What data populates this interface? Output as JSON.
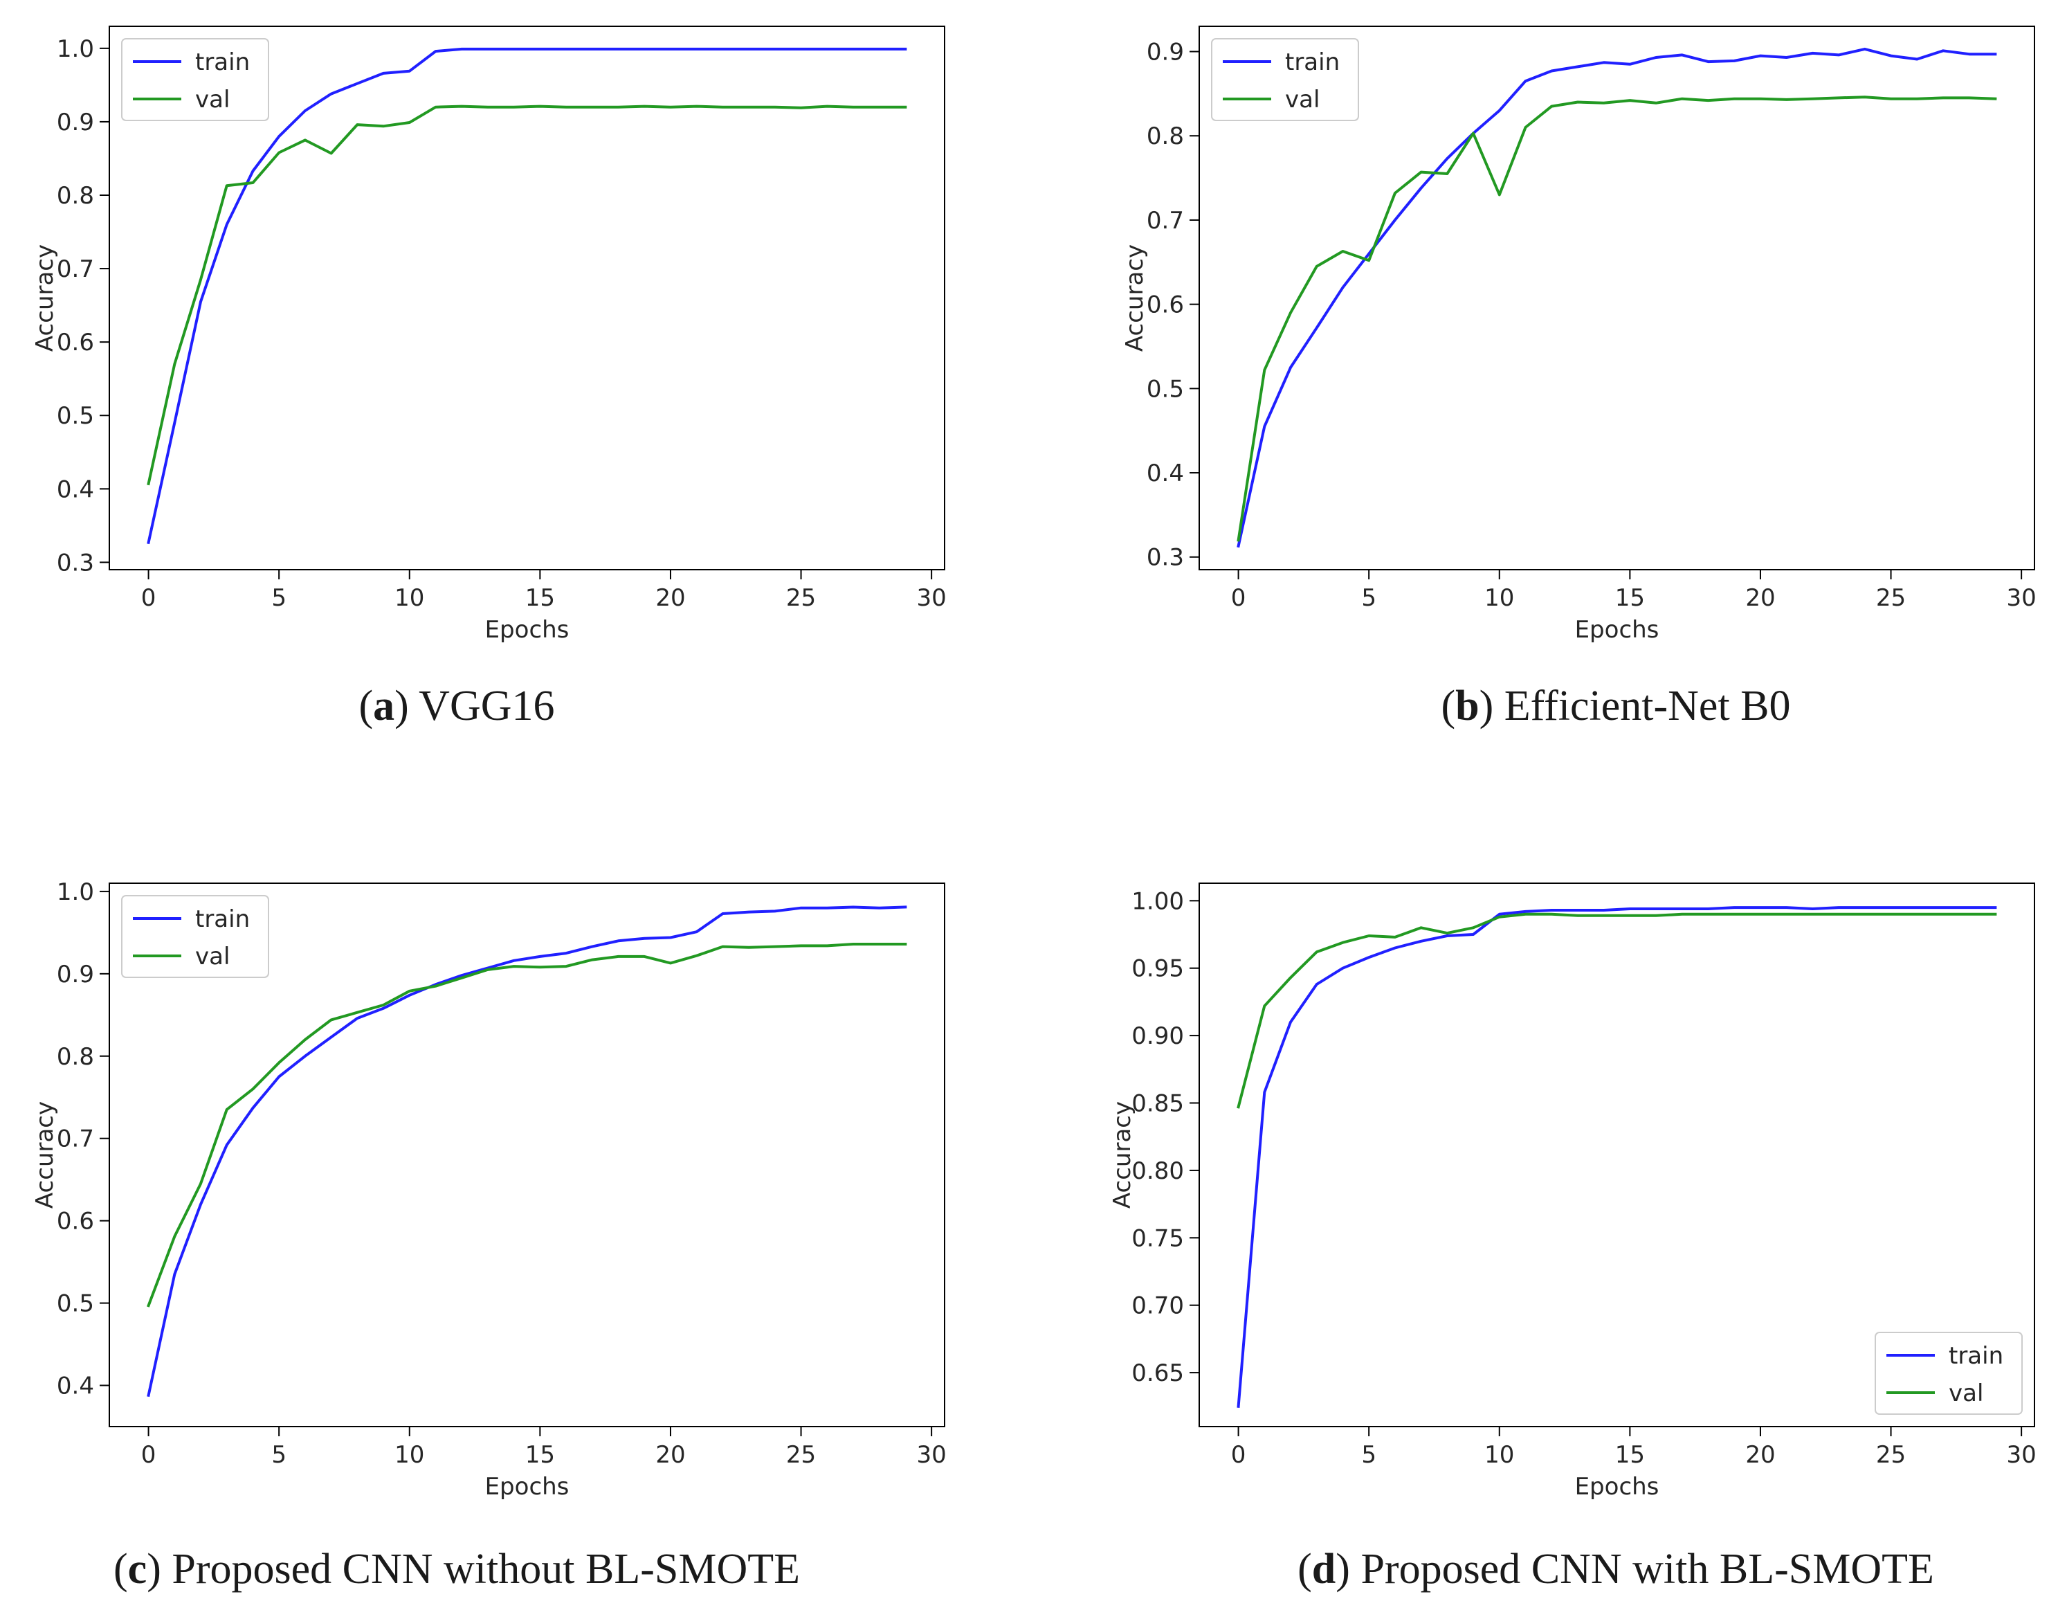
{
  "chart_data": [
    {
      "type": "line",
      "letter": "a",
      "caption": "VGG16",
      "xlabel": "Epochs",
      "ylabel": "Accuracy",
      "xlim": [
        -1.5,
        30.5
      ],
      "ylim": [
        0.29,
        1.03
      ],
      "xticks": [
        0,
        5,
        10,
        15,
        20,
        25,
        30
      ],
      "yticks": [
        0.3,
        0.4,
        0.5,
        0.6,
        0.7,
        0.8,
        0.9,
        1.0
      ],
      "ytick_labels": [
        "0.3",
        "0.4",
        "0.5",
        "0.6",
        "0.7",
        "0.8",
        "0.9",
        "1.0"
      ],
      "legend": "upper-left",
      "series": [
        {
          "name": "train",
          "color": "#2020ff",
          "values": [
            0.327,
            0.49,
            0.655,
            0.76,
            0.833,
            0.88,
            0.915,
            0.938,
            0.952,
            0.966,
            0.969,
            0.996,
            0.999,
            0.999,
            0.999,
            0.999,
            0.999,
            0.999,
            0.999,
            0.999,
            0.999,
            0.999,
            0.999,
            0.999,
            0.999,
            0.999,
            0.999,
            0.999,
            0.999,
            0.999
          ]
        },
        {
          "name": "val",
          "color": "#229922",
          "values": [
            0.407,
            0.57,
            0.685,
            0.813,
            0.817,
            0.858,
            0.875,
            0.857,
            0.896,
            0.894,
            0.899,
            0.92,
            0.921,
            0.92,
            0.92,
            0.921,
            0.92,
            0.92,
            0.92,
            0.921,
            0.92,
            0.921,
            0.92,
            0.92,
            0.92,
            0.919,
            0.921,
            0.92,
            0.92,
            0.92
          ]
        }
      ]
    },
    {
      "type": "line",
      "letter": "b",
      "caption": "Efficient-Net B0",
      "xlabel": "Epochs",
      "ylabel": "Accuracy",
      "xlim": [
        -1.5,
        30.5
      ],
      "ylim": [
        0.285,
        0.93
      ],
      "xticks": [
        0,
        5,
        10,
        15,
        20,
        25,
        30
      ],
      "yticks": [
        0.3,
        0.4,
        0.5,
        0.6,
        0.7,
        0.8,
        0.9
      ],
      "ytick_labels": [
        "0.3",
        "0.4",
        "0.5",
        "0.6",
        "0.7",
        "0.8",
        "0.9"
      ],
      "legend": "upper-left",
      "series": [
        {
          "name": "train",
          "color": "#2020ff",
          "values": [
            0.313,
            0.455,
            0.525,
            0.572,
            0.62,
            0.66,
            0.7,
            0.738,
            0.773,
            0.803,
            0.83,
            0.865,
            0.877,
            0.882,
            0.887,
            0.885,
            0.893,
            0.896,
            0.888,
            0.889,
            0.895,
            0.893,
            0.898,
            0.896,
            0.903,
            0.895,
            0.891,
            0.901,
            0.897,
            0.897
          ]
        },
        {
          "name": "val",
          "color": "#229922",
          "values": [
            0.32,
            0.522,
            0.59,
            0.645,
            0.663,
            0.652,
            0.732,
            0.757,
            0.755,
            0.803,
            0.73,
            0.81,
            0.835,
            0.84,
            0.839,
            0.842,
            0.839,
            0.844,
            0.842,
            0.844,
            0.844,
            0.843,
            0.844,
            0.845,
            0.846,
            0.844,
            0.844,
            0.845,
            0.845,
            0.844
          ]
        }
      ]
    },
    {
      "type": "line",
      "letter": "c",
      "caption": "Proposed CNN without BL-SMOTE",
      "xlabel": "Epochs",
      "ylabel": "Accuracy",
      "xlim": [
        -1.5,
        30.5
      ],
      "ylim": [
        0.35,
        1.01
      ],
      "xticks": [
        0,
        5,
        10,
        15,
        20,
        25,
        30
      ],
      "yticks": [
        0.4,
        0.5,
        0.6,
        0.7,
        0.8,
        0.9,
        1.0
      ],
      "ytick_labels": [
        "0.4",
        "0.5",
        "0.6",
        "0.7",
        "0.8",
        "0.9",
        "1.0"
      ],
      "legend": "upper-left",
      "series": [
        {
          "name": "train",
          "color": "#2020ff",
          "values": [
            0.388,
            0.535,
            0.62,
            0.692,
            0.737,
            0.775,
            0.8,
            0.823,
            0.846,
            0.858,
            0.874,
            0.887,
            0.898,
            0.907,
            0.916,
            0.921,
            0.925,
            0.933,
            0.94,
            0.943,
            0.944,
            0.951,
            0.973,
            0.975,
            0.976,
            0.98,
            0.98,
            0.981,
            0.98,
            0.981
          ]
        },
        {
          "name": "val",
          "color": "#229922",
          "values": [
            0.497,
            0.581,
            0.645,
            0.735,
            0.76,
            0.792,
            0.82,
            0.844,
            0.853,
            0.862,
            0.879,
            0.885,
            0.895,
            0.905,
            0.909,
            0.908,
            0.909,
            0.917,
            0.921,
            0.921,
            0.913,
            0.922,
            0.933,
            0.932,
            0.933,
            0.934,
            0.934,
            0.936,
            0.936,
            0.936
          ]
        }
      ]
    },
    {
      "type": "line",
      "letter": "d",
      "caption": "Proposed CNN with BL-SMOTE",
      "xlabel": "Epochs",
      "ylabel": "Accuracy",
      "xlim": [
        -1.5,
        30.5
      ],
      "ylim": [
        0.61,
        1.013
      ],
      "xticks": [
        0,
        5,
        10,
        15,
        20,
        25,
        30
      ],
      "yticks": [
        0.65,
        0.7,
        0.75,
        0.8,
        0.85,
        0.9,
        0.95,
        1.0
      ],
      "ytick_labels": [
        "0.65",
        "0.70",
        "0.75",
        "0.80",
        "0.85",
        "0.90",
        "0.95",
        "1.00"
      ],
      "legend": "lower-right",
      "series": [
        {
          "name": "train",
          "color": "#2020ff",
          "values": [
            0.625,
            0.858,
            0.91,
            0.938,
            0.95,
            0.958,
            0.965,
            0.97,
            0.974,
            0.975,
            0.99,
            0.992,
            0.993,
            0.993,
            0.993,
            0.994,
            0.994,
            0.994,
            0.994,
            0.995,
            0.995,
            0.995,
            0.994,
            0.995,
            0.995,
            0.995,
            0.995,
            0.995,
            0.995,
            0.995
          ]
        },
        {
          "name": "val",
          "color": "#229922",
          "values": [
            0.847,
            0.922,
            0.943,
            0.962,
            0.969,
            0.974,
            0.973,
            0.98,
            0.976,
            0.98,
            0.988,
            0.99,
            0.99,
            0.989,
            0.989,
            0.989,
            0.989,
            0.99,
            0.99,
            0.99,
            0.99,
            0.99,
            0.99,
            0.99,
            0.99,
            0.99,
            0.99,
            0.99,
            0.99,
            0.99
          ]
        }
      ]
    }
  ]
}
